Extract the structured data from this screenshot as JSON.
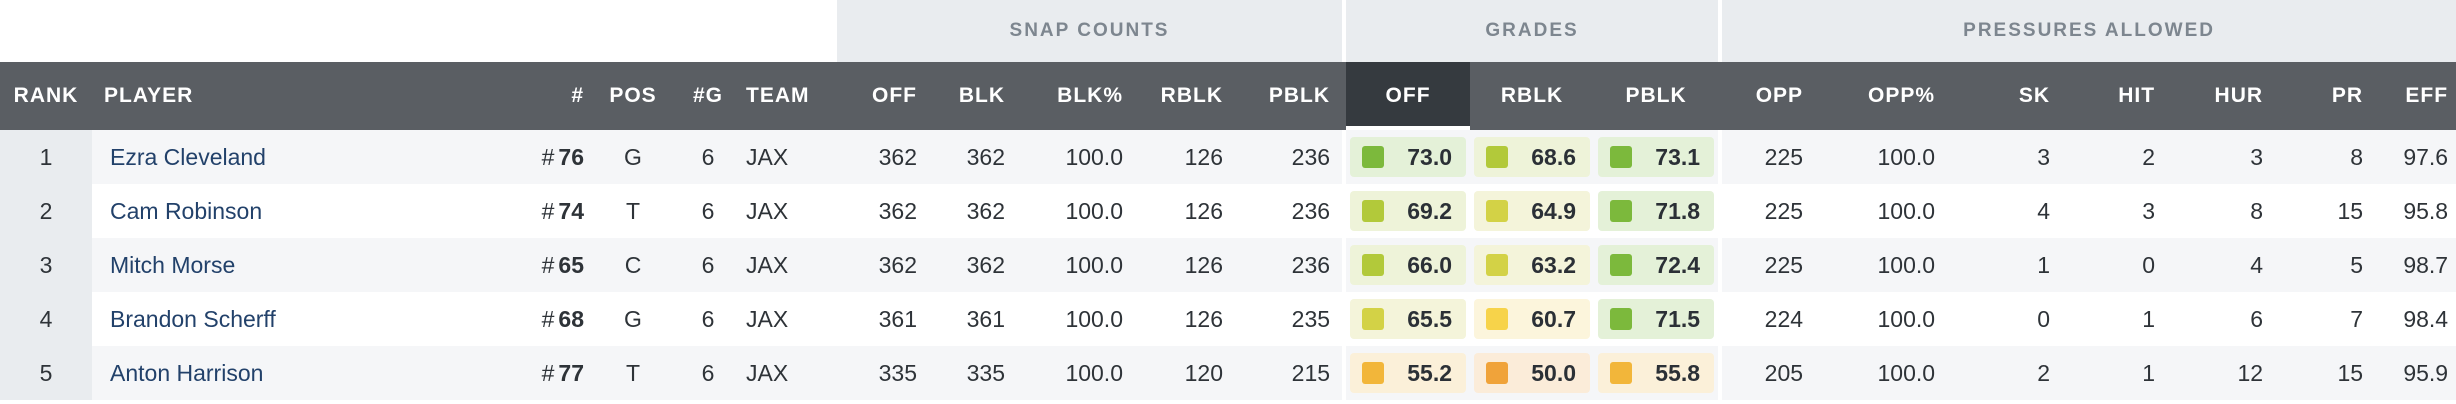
{
  "group_headers": {
    "snap_counts": "SNAP COUNTS",
    "grades": "GRADES",
    "pressures_allowed": "PRESSURES ALLOWED"
  },
  "columns": {
    "rank": "RANK",
    "player": "PLAYER",
    "jersey": "#",
    "pos": "POS",
    "games": "#G",
    "team": "TEAM",
    "snap_off": "OFF",
    "snap_blk": "BLK",
    "snap_blk_pct": "BLK%",
    "snap_rblk": "RBLK",
    "snap_pblk": "PBLK",
    "grade_off": "OFF",
    "grade_rblk": "RBLK",
    "grade_pblk": "PBLK",
    "opp": "OPP",
    "opp_pct": "OPP%",
    "sk": "SK",
    "hit": "HIT",
    "hur": "HUR",
    "pr": "PR",
    "eff": "EFF"
  },
  "grade_colors": {
    "green": "#7cb93c",
    "green_bg": "#e4f1d8",
    "lime": "#b2c93a",
    "lime_bg": "#eef3d9",
    "yellow_lime": "#d3d246",
    "yellow_lime_bg": "#f4f4da",
    "yellow": "#f7d34a",
    "yellow_bg": "#fcf5dc",
    "gold": "#f2b63a",
    "gold_bg": "#fbf0d9",
    "orange": "#f0a33a",
    "orange_bg": "#fbecd9"
  },
  "rows": [
    {
      "rank": "1",
      "player": "Ezra Cleveland",
      "hash": "#",
      "jersey": "76",
      "pos": "G",
      "games": "6",
      "team": "JAX",
      "snap_off": "362",
      "snap_blk": "362",
      "snap_blk_pct": "100.0",
      "snap_rblk": "126",
      "snap_pblk": "236",
      "grade_off": "73.0",
      "grade_off_color": "green",
      "grade_rblk": "68.6",
      "grade_rblk_color": "lime",
      "grade_pblk": "73.1",
      "grade_pblk_color": "green",
      "opp": "225",
      "opp_pct": "100.0",
      "sk": "3",
      "hit": "2",
      "hur": "3",
      "pr": "8",
      "eff": "97.6"
    },
    {
      "rank": "2",
      "player": "Cam Robinson",
      "hash": "#",
      "jersey": "74",
      "pos": "T",
      "games": "6",
      "team": "JAX",
      "snap_off": "362",
      "snap_blk": "362",
      "snap_blk_pct": "100.0",
      "snap_rblk": "126",
      "snap_pblk": "236",
      "grade_off": "69.2",
      "grade_off_color": "lime",
      "grade_rblk": "64.9",
      "grade_rblk_color": "yellow_lime",
      "grade_pblk": "71.8",
      "grade_pblk_color": "green",
      "opp": "225",
      "opp_pct": "100.0",
      "sk": "4",
      "hit": "3",
      "hur": "8",
      "pr": "15",
      "eff": "95.8"
    },
    {
      "rank": "3",
      "player": "Mitch Morse",
      "hash": "#",
      "jersey": "65",
      "pos": "C",
      "games": "6",
      "team": "JAX",
      "snap_off": "362",
      "snap_blk": "362",
      "snap_blk_pct": "100.0",
      "snap_rblk": "126",
      "snap_pblk": "236",
      "grade_off": "66.0",
      "grade_off_color": "lime",
      "grade_rblk": "63.2",
      "grade_rblk_color": "yellow_lime",
      "grade_pblk": "72.4",
      "grade_pblk_color": "green",
      "opp": "225",
      "opp_pct": "100.0",
      "sk": "1",
      "hit": "0",
      "hur": "4",
      "pr": "5",
      "eff": "98.7"
    },
    {
      "rank": "4",
      "player": "Brandon Scherff",
      "hash": "#",
      "jersey": "68",
      "pos": "G",
      "games": "6",
      "team": "JAX",
      "snap_off": "361",
      "snap_blk": "361",
      "snap_blk_pct": "100.0",
      "snap_rblk": "126",
      "snap_pblk": "235",
      "grade_off": "65.5",
      "grade_off_color": "yellow_lime",
      "grade_rblk": "60.7",
      "grade_rblk_color": "yellow",
      "grade_pblk": "71.5",
      "grade_pblk_color": "green",
      "opp": "224",
      "opp_pct": "100.0",
      "sk": "0",
      "hit": "1",
      "hur": "6",
      "pr": "7",
      "eff": "98.4"
    },
    {
      "rank": "5",
      "player": "Anton Harrison",
      "hash": "#",
      "jersey": "77",
      "pos": "T",
      "games": "6",
      "team": "JAX",
      "snap_off": "335",
      "snap_blk": "335",
      "snap_blk_pct": "100.0",
      "snap_rblk": "120",
      "snap_pblk": "215",
      "grade_off": "55.2",
      "grade_off_color": "gold",
      "grade_rblk": "50.0",
      "grade_rblk_color": "orange",
      "grade_pblk": "55.8",
      "grade_pblk_color": "gold",
      "opp": "205",
      "opp_pct": "100.0",
      "sk": "2",
      "hit": "1",
      "hur": "12",
      "pr": "15",
      "eff": "95.9"
    }
  ]
}
